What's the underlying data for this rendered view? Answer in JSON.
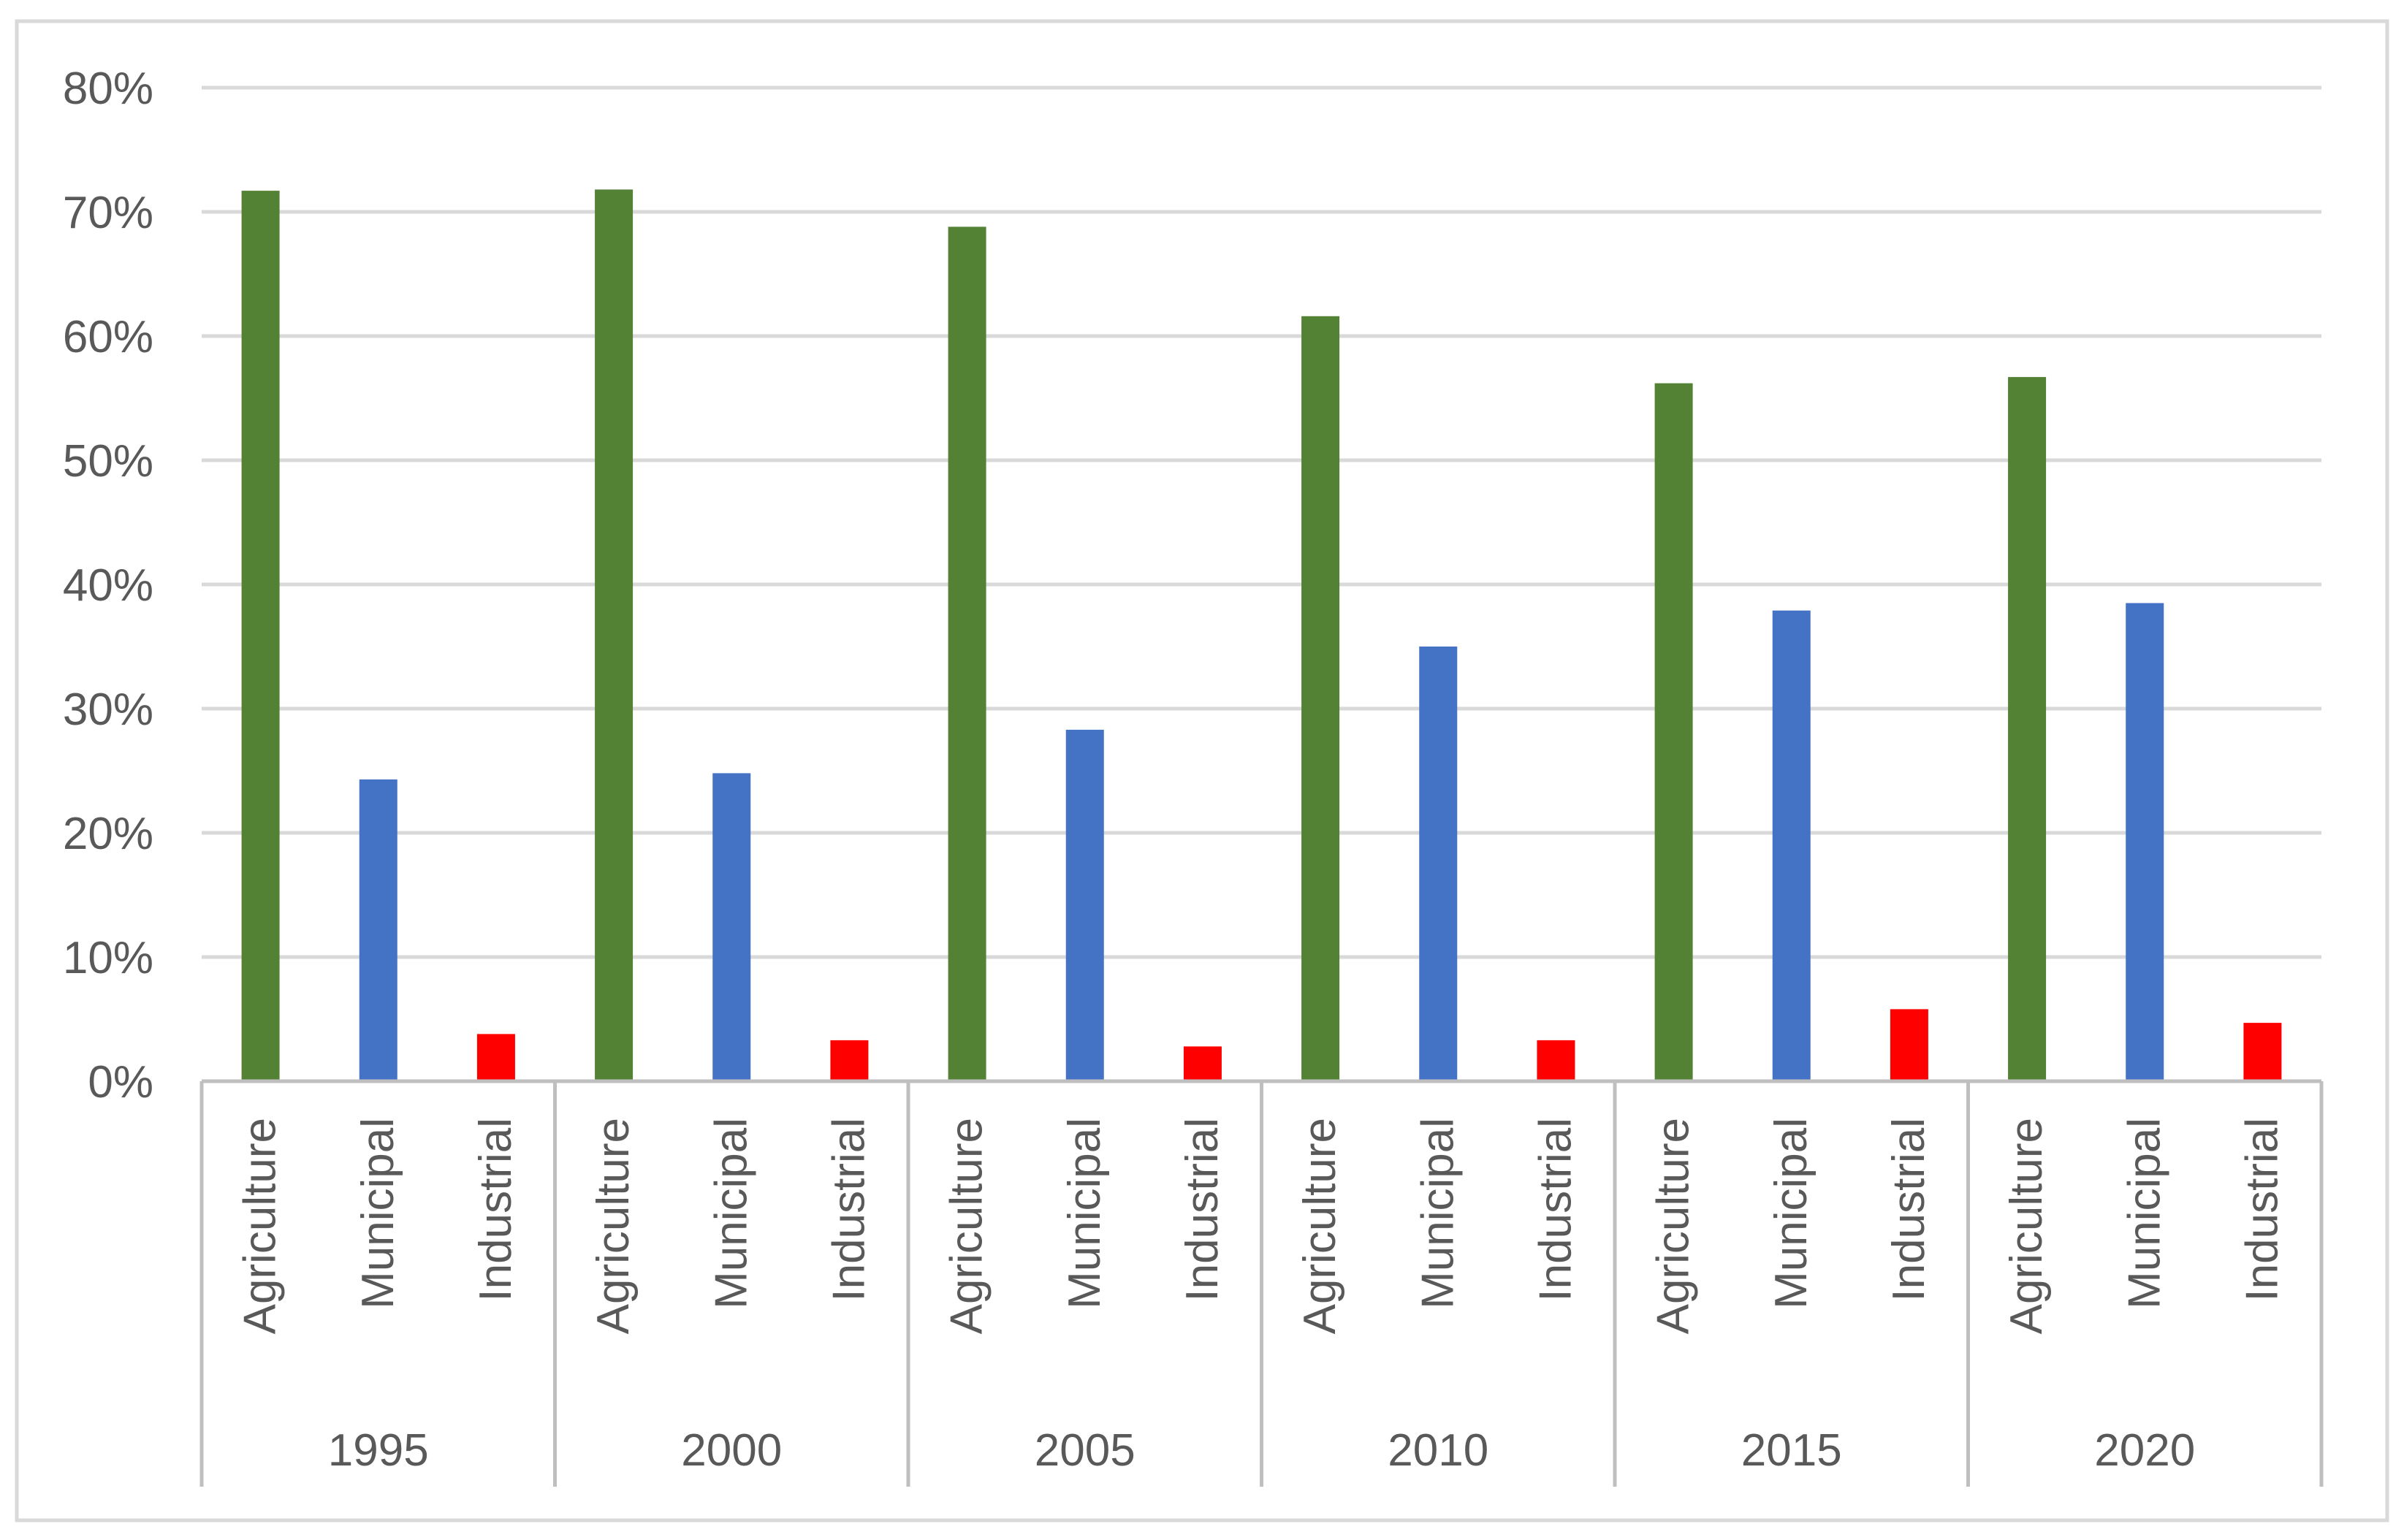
{
  "chart_data": {
    "type": "bar",
    "title": "",
    "xlabel": "",
    "ylabel": "",
    "ylim": [
      0,
      80
    ],
    "y_ticks": [
      "0%",
      "10%",
      "20%",
      "30%",
      "40%",
      "50%",
      "60%",
      "70%",
      "80%"
    ],
    "y_tick_values": [
      0,
      10,
      20,
      30,
      40,
      50,
      60,
      70,
      80
    ],
    "grid": "horizontal",
    "legend": "none",
    "groups": [
      {
        "year": "1995",
        "categories": [
          "Agriculture",
          "Municipal",
          "Industrial"
        ],
        "values": [
          71.7,
          24.3,
          3.8
        ]
      },
      {
        "year": "2000",
        "categories": [
          "Agriculture",
          "Municipal",
          "Industrial"
        ],
        "values": [
          71.8,
          24.8,
          3.3
        ]
      },
      {
        "year": "2005",
        "categories": [
          "Agriculture",
          "Municipal",
          "Industrial"
        ],
        "values": [
          68.8,
          28.3,
          2.8
        ]
      },
      {
        "year": "2010",
        "categories": [
          "Agriculture",
          "Municipal",
          "Industrial"
        ],
        "values": [
          61.6,
          35.0,
          3.3
        ]
      },
      {
        "year": "2015",
        "categories": [
          "Agriculture",
          "Municipal",
          "Industrial"
        ],
        "values": [
          56.2,
          37.9,
          5.8
        ]
      },
      {
        "year": "2020",
        "categories": [
          "Agriculture",
          "Municipal",
          "Industrial"
        ],
        "values": [
          56.7,
          38.5,
          4.7
        ]
      }
    ],
    "colors": {
      "Agriculture": "#548235",
      "Municipal": "#4472C4",
      "Industrial": "#FF0000"
    },
    "gridline_color": "#D9D9D9",
    "axis_color": "#BFBFBF"
  }
}
